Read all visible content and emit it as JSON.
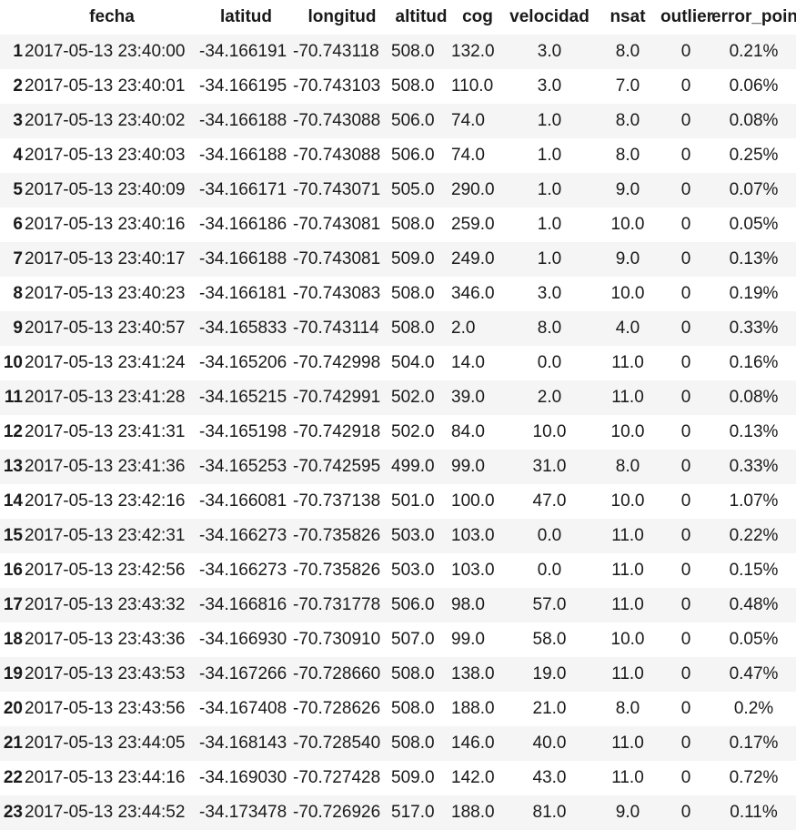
{
  "columns": {
    "index": "",
    "fecha": "fecha",
    "latitud": "latitud",
    "longitud": "longitud",
    "altitud": "altitud",
    "cog": "cog",
    "velocidad": "velocidad",
    "nsat": "nsat",
    "outlier": "outlier",
    "error_point": "error_point"
  },
  "rows": [
    {
      "index": "1",
      "fecha": "2017-05-13 23:40:00",
      "latitud": "-34.166191",
      "longitud": "-70.743118",
      "altitud": "508.0",
      "cog": "132.0",
      "velocidad": "3.0",
      "nsat": "8.0",
      "outlier": "0",
      "error_point": "0.21%"
    },
    {
      "index": "2",
      "fecha": "2017-05-13 23:40:01",
      "latitud": "-34.166195",
      "longitud": "-70.743103",
      "altitud": "508.0",
      "cog": "110.0",
      "velocidad": "3.0",
      "nsat": "7.0",
      "outlier": "0",
      "error_point": "0.06%"
    },
    {
      "index": "3",
      "fecha": "2017-05-13 23:40:02",
      "latitud": "-34.166188",
      "longitud": "-70.743088",
      "altitud": "506.0",
      "cog": "74.0",
      "velocidad": "1.0",
      "nsat": "8.0",
      "outlier": "0",
      "error_point": "0.08%"
    },
    {
      "index": "4",
      "fecha": "2017-05-13 23:40:03",
      "latitud": "-34.166188",
      "longitud": "-70.743088",
      "altitud": "506.0",
      "cog": "74.0",
      "velocidad": "1.0",
      "nsat": "8.0",
      "outlier": "0",
      "error_point": "0.25%"
    },
    {
      "index": "5",
      "fecha": "2017-05-13 23:40:09",
      "latitud": "-34.166171",
      "longitud": "-70.743071",
      "altitud": "505.0",
      "cog": "290.0",
      "velocidad": "1.0",
      "nsat": "9.0",
      "outlier": "0",
      "error_point": "0.07%"
    },
    {
      "index": "6",
      "fecha": "2017-05-13 23:40:16",
      "latitud": "-34.166186",
      "longitud": "-70.743081",
      "altitud": "508.0",
      "cog": "259.0",
      "velocidad": "1.0",
      "nsat": "10.0",
      "outlier": "0",
      "error_point": "0.05%"
    },
    {
      "index": "7",
      "fecha": "2017-05-13 23:40:17",
      "latitud": "-34.166188",
      "longitud": "-70.743081",
      "altitud": "509.0",
      "cog": "249.0",
      "velocidad": "1.0",
      "nsat": "9.0",
      "outlier": "0",
      "error_point": "0.13%"
    },
    {
      "index": "8",
      "fecha": "2017-05-13 23:40:23",
      "latitud": "-34.166181",
      "longitud": "-70.743083",
      "altitud": "508.0",
      "cog": "346.0",
      "velocidad": "3.0",
      "nsat": "10.0",
      "outlier": "0",
      "error_point": "0.19%"
    },
    {
      "index": "9",
      "fecha": "2017-05-13 23:40:57",
      "latitud": "-34.165833",
      "longitud": "-70.743114",
      "altitud": "508.0",
      "cog": "2.0",
      "velocidad": "8.0",
      "nsat": "4.0",
      "outlier": "0",
      "error_point": "0.33%"
    },
    {
      "index": "10",
      "fecha": "2017-05-13 23:41:24",
      "latitud": "-34.165206",
      "longitud": "-70.742998",
      "altitud": "504.0",
      "cog": "14.0",
      "velocidad": "0.0",
      "nsat": "11.0",
      "outlier": "0",
      "error_point": "0.16%"
    },
    {
      "index": "11",
      "fecha": "2017-05-13 23:41:28",
      "latitud": "-34.165215",
      "longitud": "-70.742991",
      "altitud": "502.0",
      "cog": "39.0",
      "velocidad": "2.0",
      "nsat": "11.0",
      "outlier": "0",
      "error_point": "0.08%"
    },
    {
      "index": "12",
      "fecha": "2017-05-13 23:41:31",
      "latitud": "-34.165198",
      "longitud": "-70.742918",
      "altitud": "502.0",
      "cog": "84.0",
      "velocidad": "10.0",
      "nsat": "10.0",
      "outlier": "0",
      "error_point": "0.13%"
    },
    {
      "index": "13",
      "fecha": "2017-05-13 23:41:36",
      "latitud": "-34.165253",
      "longitud": "-70.742595",
      "altitud": "499.0",
      "cog": "99.0",
      "velocidad": "31.0",
      "nsat": "8.0",
      "outlier": "0",
      "error_point": "0.33%"
    },
    {
      "index": "14",
      "fecha": "2017-05-13 23:42:16",
      "latitud": "-34.166081",
      "longitud": "-70.737138",
      "altitud": "501.0",
      "cog": "100.0",
      "velocidad": "47.0",
      "nsat": "10.0",
      "outlier": "0",
      "error_point": "1.07%"
    },
    {
      "index": "15",
      "fecha": "2017-05-13 23:42:31",
      "latitud": "-34.166273",
      "longitud": "-70.735826",
      "altitud": "503.0",
      "cog": "103.0",
      "velocidad": "0.0",
      "nsat": "11.0",
      "outlier": "0",
      "error_point": "0.22%"
    },
    {
      "index": "16",
      "fecha": "2017-05-13 23:42:56",
      "latitud": "-34.166273",
      "longitud": "-70.735826",
      "altitud": "503.0",
      "cog": "103.0",
      "velocidad": "0.0",
      "nsat": "11.0",
      "outlier": "0",
      "error_point": "0.15%"
    },
    {
      "index": "17",
      "fecha": "2017-05-13 23:43:32",
      "latitud": "-34.166816",
      "longitud": "-70.731778",
      "altitud": "506.0",
      "cog": "98.0",
      "velocidad": "57.0",
      "nsat": "11.0",
      "outlier": "0",
      "error_point": "0.48%"
    },
    {
      "index": "18",
      "fecha": "2017-05-13 23:43:36",
      "latitud": "-34.166930",
      "longitud": "-70.730910",
      "altitud": "507.0",
      "cog": "99.0",
      "velocidad": "58.0",
      "nsat": "10.0",
      "outlier": "0",
      "error_point": "0.05%"
    },
    {
      "index": "19",
      "fecha": "2017-05-13 23:43:53",
      "latitud": "-34.167266",
      "longitud": "-70.728660",
      "altitud": "508.0",
      "cog": "138.0",
      "velocidad": "19.0",
      "nsat": "11.0",
      "outlier": "0",
      "error_point": "0.47%"
    },
    {
      "index": "20",
      "fecha": "2017-05-13 23:43:56",
      "latitud": "-34.167408",
      "longitud": "-70.728626",
      "altitud": "508.0",
      "cog": "188.0",
      "velocidad": "21.0",
      "nsat": "8.0",
      "outlier": "0",
      "error_point": "0.2%"
    },
    {
      "index": "21",
      "fecha": "2017-05-13 23:44:05",
      "latitud": "-34.168143",
      "longitud": "-70.728540",
      "altitud": "508.0",
      "cog": "146.0",
      "velocidad": "40.0",
      "nsat": "11.0",
      "outlier": "0",
      "error_point": "0.17%"
    },
    {
      "index": "22",
      "fecha": "2017-05-13 23:44:16",
      "latitud": "-34.169030",
      "longitud": "-70.727428",
      "altitud": "509.0",
      "cog": "142.0",
      "velocidad": "43.0",
      "nsat": "11.0",
      "outlier": "0",
      "error_point": "0.72%"
    },
    {
      "index": "23",
      "fecha": "2017-05-13 23:44:52",
      "latitud": "-34.173478",
      "longitud": "-70.726926",
      "altitud": "517.0",
      "cog": "188.0",
      "velocidad": "81.0",
      "nsat": "9.0",
      "outlier": "0",
      "error_point": "0.11%"
    }
  ]
}
